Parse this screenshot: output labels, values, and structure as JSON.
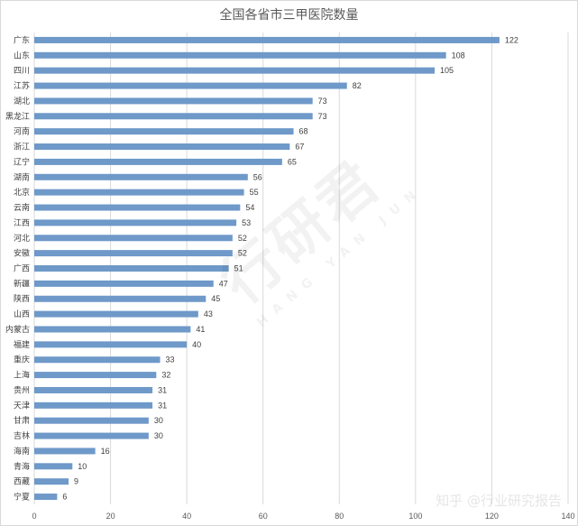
{
  "chart_data": {
    "type": "bar",
    "orientation": "horizontal",
    "title": "全国各省市三甲医院数量",
    "xlabel": "",
    "ylabel": "",
    "xlim": [
      0,
      140
    ],
    "xticks": [
      0,
      20,
      40,
      60,
      80,
      100,
      120,
      140
    ],
    "grid": "vertical",
    "bar_color": "#6e99c9",
    "categories": [
      "广东",
      "山东",
      "四川",
      "江苏",
      "湖北",
      "黑龙江",
      "河南",
      "浙江",
      "辽宁",
      "湖南",
      "北京",
      "云南",
      "江西",
      "河北",
      "安徽",
      "广西",
      "新疆",
      "陕西",
      "山西",
      "内蒙古",
      "福建",
      "重庆",
      "上海",
      "贵州",
      "天津",
      "甘肃",
      "吉林",
      "海南",
      "青海",
      "西藏",
      "宁夏"
    ],
    "values": [
      122,
      108,
      105,
      82,
      73,
      73,
      68,
      67,
      65,
      56,
      55,
      54,
      53,
      52,
      52,
      51,
      47,
      45,
      43,
      41,
      40,
      33,
      32,
      31,
      31,
      30,
      30,
      16,
      10,
      9,
      6
    ]
  },
  "watermark": {
    "main": "行研君",
    "sub": "HANG YAN JUN"
  },
  "source_credit": "知乎 @行业研究报告"
}
